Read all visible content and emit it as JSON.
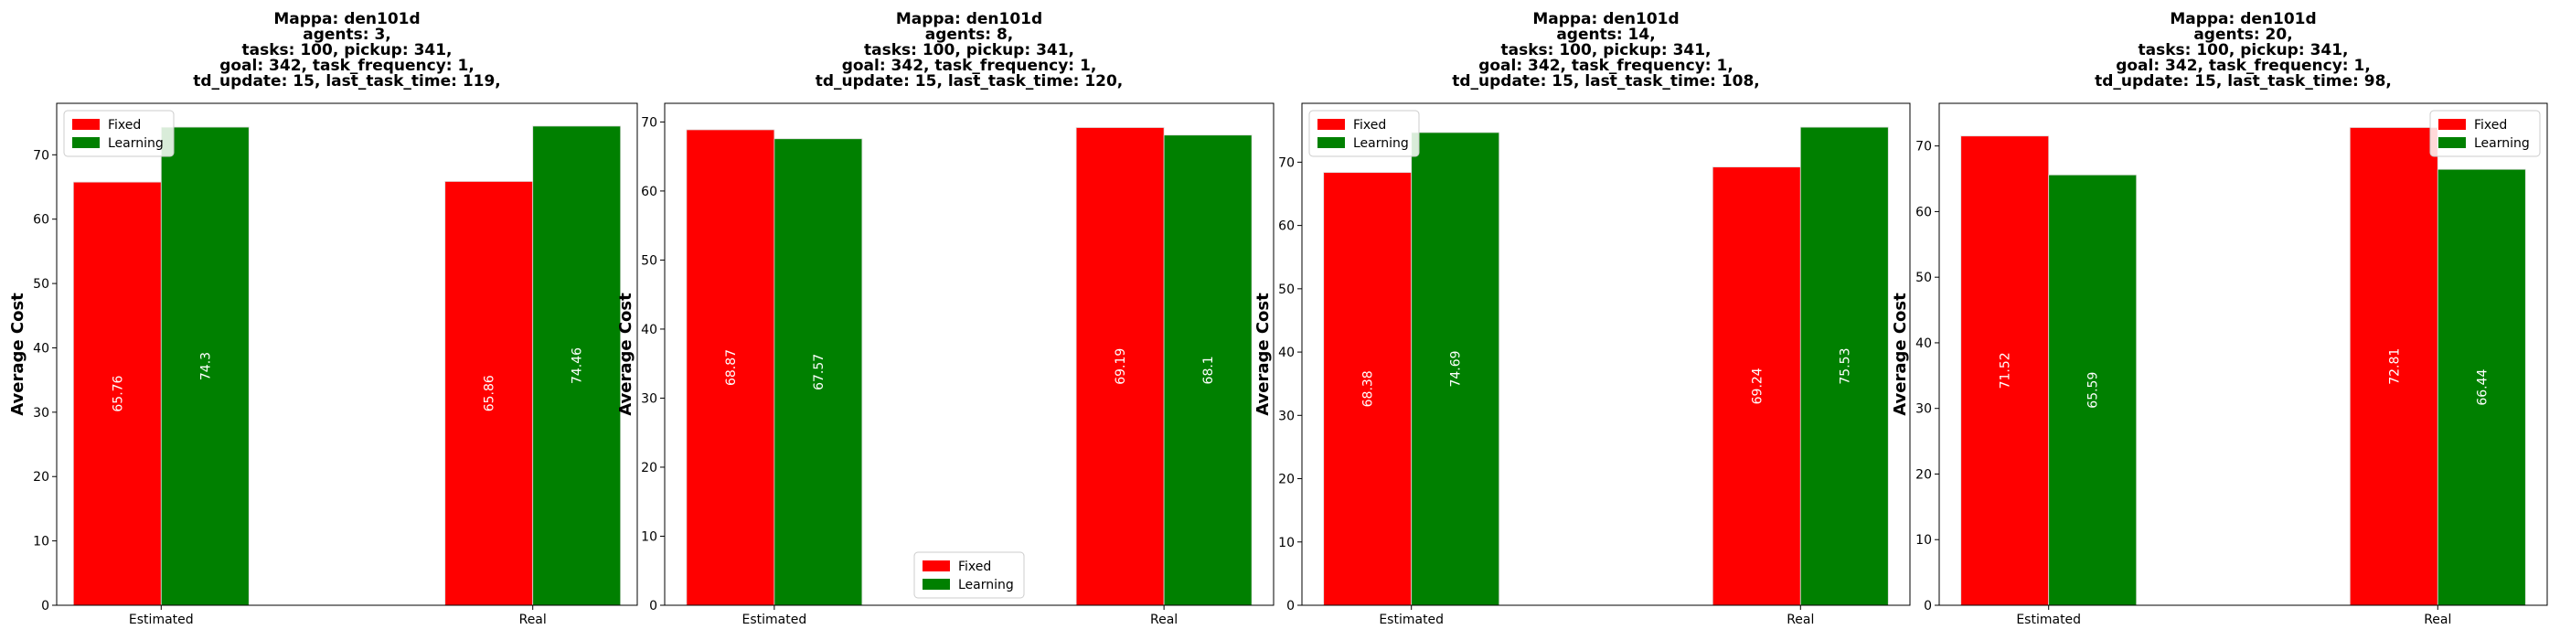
{
  "figure": {
    "background": "#ffffff"
  },
  "chart_data": [
    {
      "type": "bar",
      "title_lines": [
        "Mappa: den101d",
        "agents: 3,",
        "tasks: 100, pickup: 341,",
        "goal: 342, task_frequency: 1,",
        "td_update: 15, last_task_time: 119,"
      ],
      "categories": [
        "Estimated",
        "Real"
      ],
      "ylabel": "Average Cost",
      "ylim": [
        0,
        78
      ],
      "yticks": [
        0,
        10,
        20,
        30,
        40,
        50,
        60,
        70
      ],
      "legend_position": "top-left",
      "series": [
        {
          "name": "Fixed",
          "color": "#ff0000",
          "values": [
            65.76,
            65.86
          ],
          "labels": [
            "65.76",
            "65.86"
          ]
        },
        {
          "name": "Learning",
          "color": "#008000",
          "values": [
            74.3,
            74.46
          ],
          "labels": [
            "74.3",
            "74.46"
          ]
        }
      ]
    },
    {
      "type": "bar",
      "title_lines": [
        "Mappa: den101d",
        "agents: 8,",
        "tasks: 100, pickup: 341,",
        "goal: 342, task_frequency: 1,",
        "td_update: 15, last_task_time: 120,"
      ],
      "categories": [
        "Estimated",
        "Real"
      ],
      "ylabel": "Average Cost",
      "ylim": [
        0,
        72.7
      ],
      "yticks": [
        0,
        10,
        20,
        30,
        40,
        50,
        60,
        70
      ],
      "legend_position": "bottom-center",
      "series": [
        {
          "name": "Fixed",
          "color": "#ff0000",
          "values": [
            68.87,
            69.19
          ],
          "labels": [
            "68.87",
            "69.19"
          ]
        },
        {
          "name": "Learning",
          "color": "#008000",
          "values": [
            67.57,
            68.1
          ],
          "labels": [
            "67.57",
            "68.1"
          ]
        }
      ]
    },
    {
      "type": "bar",
      "title_lines": [
        "Mappa: den101d",
        "agents: 14,",
        "tasks: 100, pickup: 341,",
        "goal: 342, task_frequency: 1,",
        "td_update: 15, last_task_time: 108,"
      ],
      "categories": [
        "Estimated",
        "Real"
      ],
      "ylabel": "Average Cost",
      "ylim": [
        0,
        79.3
      ],
      "yticks": [
        0,
        10,
        20,
        30,
        40,
        50,
        60,
        70
      ],
      "legend_position": "top-left",
      "series": [
        {
          "name": "Fixed",
          "color": "#ff0000",
          "values": [
            68.38,
            69.24
          ],
          "labels": [
            "68.38",
            "69.24"
          ]
        },
        {
          "name": "Learning",
          "color": "#008000",
          "values": [
            74.69,
            75.53
          ],
          "labels": [
            "74.69",
            "75.53"
          ]
        }
      ]
    },
    {
      "type": "bar",
      "title_lines": [
        "Mappa: den101d",
        "agents: 20,",
        "tasks: 100, pickup: 341,",
        "goal: 342, task_frequency: 1,",
        "td_update: 15, last_task_time: 98,"
      ],
      "categories": [
        "Estimated",
        "Real"
      ],
      "ylabel": "Average Cost",
      "ylim": [
        0,
        76.5
      ],
      "yticks": [
        0,
        10,
        20,
        30,
        40,
        50,
        60,
        70
      ],
      "legend_position": "top-right",
      "series": [
        {
          "name": "Fixed",
          "color": "#ff0000",
          "values": [
            71.52,
            72.81
          ],
          "labels": [
            "71.52",
            "72.81"
          ]
        },
        {
          "name": "Learning",
          "color": "#008000",
          "values": [
            65.59,
            66.44
          ],
          "labels": [
            "65.59",
            "66.44"
          ]
        }
      ]
    }
  ]
}
